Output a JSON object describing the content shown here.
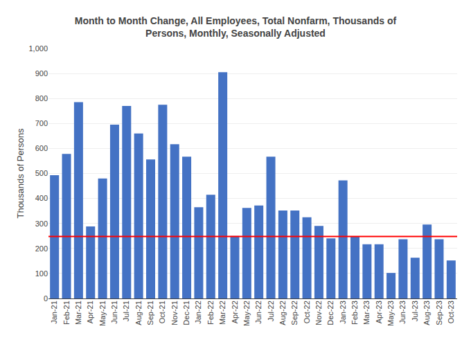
{
  "chart_data": {
    "type": "bar",
    "title": "Month to Month Change, All Employees, Total Nonfarm, Thousands of\nPersons, Monthly, Seasonally Adjusted",
    "ylabel": "Thousands of Persons",
    "categories": [
      "Jan-21",
      "Feb-21",
      "Mar-21",
      "Apr-21",
      "May-21",
      "Jun-21",
      "Jul-21",
      "Aug-21",
      "Sep-21",
      "Oct-21",
      "Nov-21",
      "Dec-21",
      "Jan-22",
      "Feb-22",
      "Mar-22",
      "Apr-22",
      "May-22",
      "Jun-22",
      "Jul-22",
      "Aug-22",
      "Sep-22",
      "Oct-22",
      "Nov-22",
      "Dec-22",
      "Jan-23",
      "Feb-23",
      "Mar-23",
      "Apr-23",
      "May-23",
      "Jun-23",
      "Jul-23",
      "Aug-23",
      "Sep-23",
      "Oct-23"
    ],
    "values": [
      493,
      578,
      785,
      288,
      480,
      695,
      770,
      660,
      556,
      775,
      617,
      567,
      365,
      415,
      905,
      250,
      362,
      372,
      567,
      352,
      352,
      325,
      290,
      240,
      472,
      248,
      217,
      217,
      102,
      237,
      163,
      296,
      237,
      152
    ],
    "color": "#4472C4",
    "reference_line": {
      "value": 248,
      "color": "red"
    },
    "ylim": [
      0,
      1000
    ],
    "yticks": [
      0,
      100,
      200,
      300,
      400,
      500,
      600,
      700,
      800,
      900,
      {
        "value": 1000,
        "label": "1,000"
      }
    ],
    "grid": true
  }
}
